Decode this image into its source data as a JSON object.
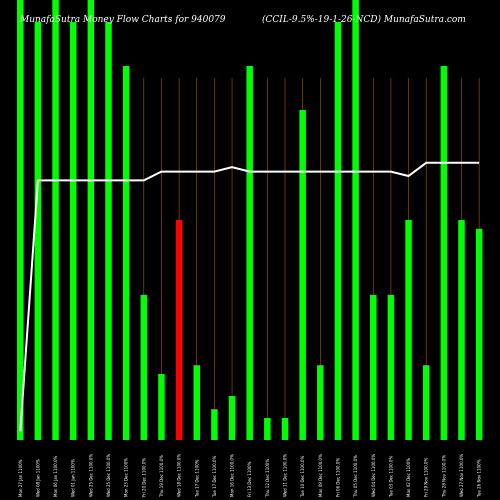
{
  "header": {
    "left": "MunafaSutra  Money Flow  Charts for 940079",
    "right": "(CCIL-9.5%-19-1-26-NCD) MunafaSutra.com"
  },
  "chart_data": {
    "type": "bar",
    "title": "MunafaSutra  Money Flow  Charts for 940079 (CCIL-9.5%-19-1-26-NCD) MunafaSutra.com",
    "bar_colors": {
      "up": "#00ff00",
      "down": "#ff0000"
    },
    "line_color": "#ffffff",
    "grid_color": "#b05a00",
    "ylim": [
      0,
      100
    ],
    "categories": [
      "Mon 27 Jan 1100%",
      "Wed 08 Jan 1100%",
      "Mon 06 Jan 1100.0%",
      "Wed 01 Jan 1100%",
      "Wed 25 Dec 1100.0%",
      "Wed 25 Dec 1100.0%",
      "Mon 23 Dec 1100%",
      "Fri 20 Dec 1100.0%",
      "Thu 19 Dec 1100.0%",
      "Wed 18 Dec 1100.0%",
      "Tue 17 Dec 1100%",
      "Tue 17 Dec 1100.0%",
      "Mon 16 Dec 1100.0%",
      "Fri 13 Dec 1100%",
      "Thu 12 Dec 1100%",
      "Wed 11 Dec 1100.0%",
      "Tue 10 Dec 1100.0%",
      "Mon 09 Dec 1100.0%",
      "Fri 06 Dec 1100.0%",
      "Thu 05 Dec 1100.0%",
      "Wed 04 Dec 1100.0%",
      "Tue 03 Dec 1100.0%",
      "Mon 02 Dec 1100%",
      "Fri 29 Nov 1100.0%",
      "Thu 28 Nov 1100.0%",
      "Wed 27 Nov 1100.0%",
      "Tue 26 Nov 1100%"
    ],
    "series": [
      {
        "type": "bar",
        "values": [
          100,
          95,
          100,
          95,
          100,
          95,
          85,
          33,
          15,
          50,
          17,
          7,
          10,
          85,
          5,
          5,
          75,
          17,
          95,
          100,
          33,
          33,
          50,
          17,
          85,
          50,
          48
        ],
        "directions": [
          "up",
          "up",
          "up",
          "up",
          "up",
          "up",
          "up",
          "up",
          "up",
          "down",
          "up",
          "up",
          "up",
          "up",
          "up",
          "up",
          "up",
          "up",
          "up",
          "up",
          "up",
          "up",
          "up",
          "up",
          "up",
          "up",
          "up"
        ]
      },
      {
        "type": "line",
        "values": [
          2,
          59,
          59,
          59,
          59,
          59,
          59,
          59,
          61,
          61,
          61,
          61,
          62,
          61,
          61,
          61,
          61,
          61,
          61,
          61,
          61,
          61,
          60,
          63,
          63,
          63,
          63
        ]
      }
    ]
  }
}
